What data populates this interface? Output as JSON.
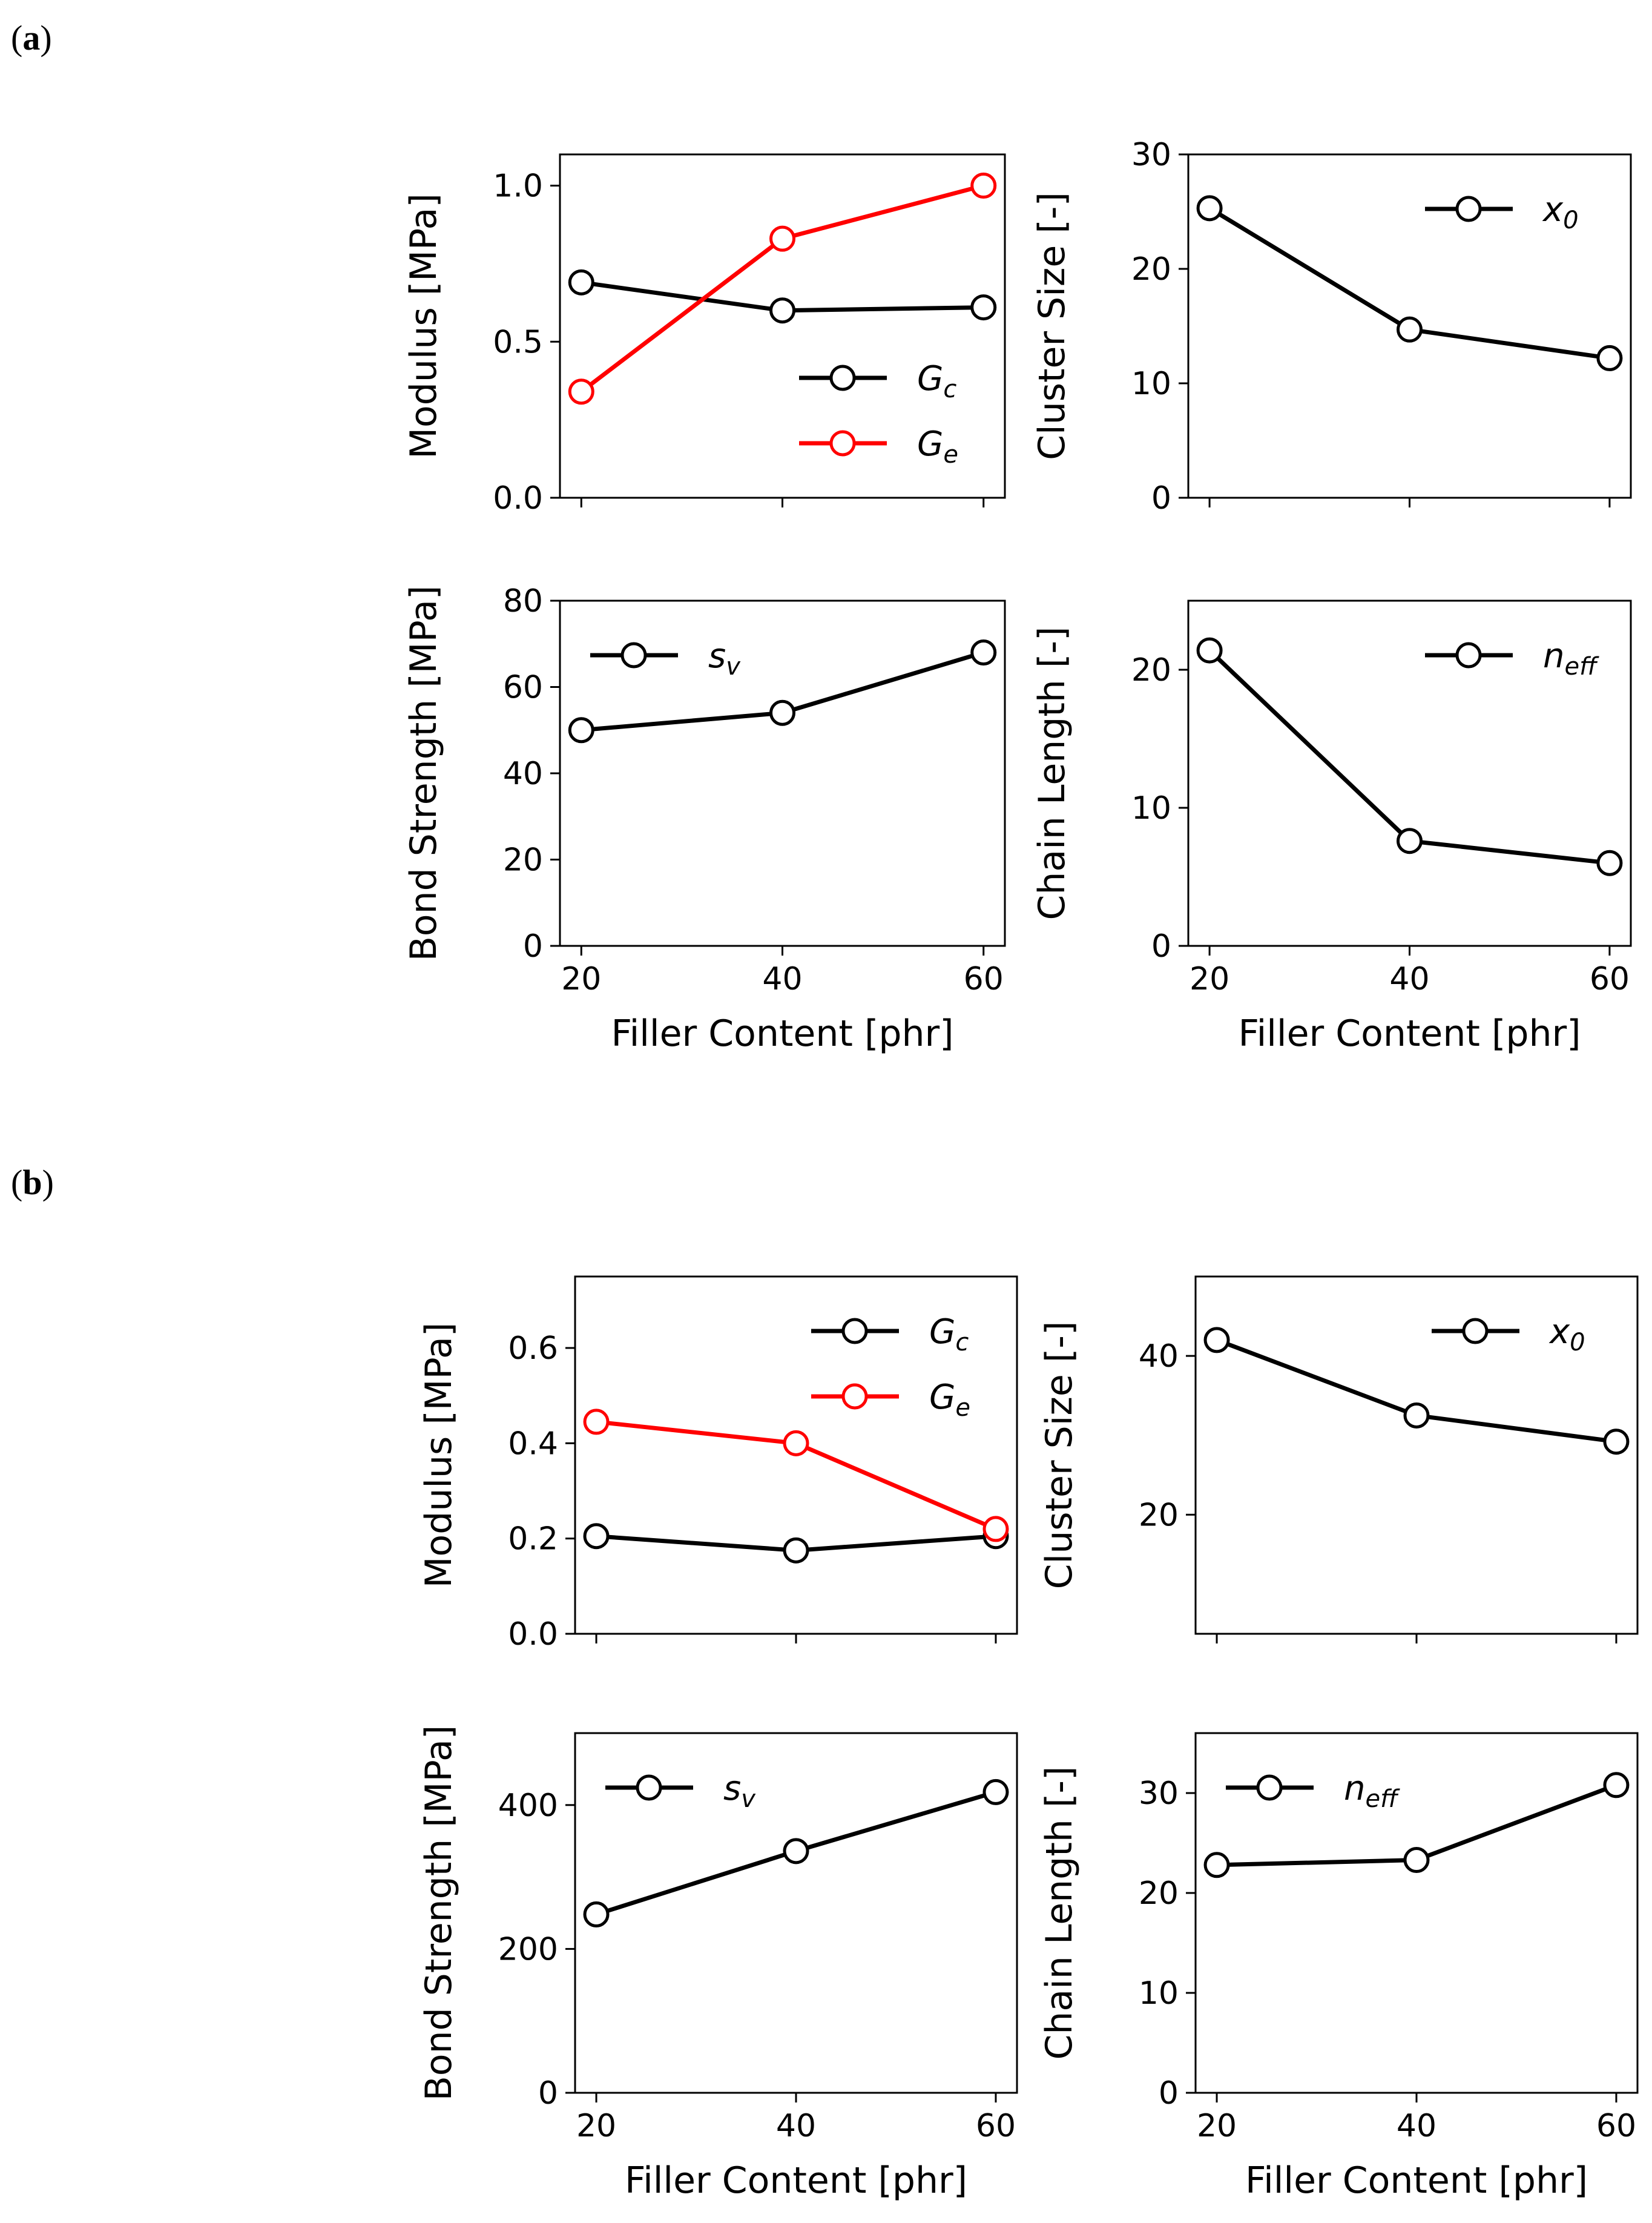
{
  "panels": [
    {
      "label": "(a)",
      "label_letter": "a"
    },
    {
      "label": "(b)",
      "label_letter": "b"
    }
  ],
  "colors": {
    "black": "#000000",
    "red": "#ff0000"
  },
  "chart_data": [
    {
      "panel": "a",
      "type": "line",
      "position": "top-left",
      "title": "",
      "xlabel": "",
      "ylabel": "Modulus [MPa]",
      "x": [
        20,
        40,
        60
      ],
      "xticks": [],
      "xtick_labels": [],
      "ylim": [
        0,
        1.1
      ],
      "yticks": [
        0.0,
        0.5,
        1.0
      ],
      "ytick_labels": [
        "0.0",
        "0.5",
        "1.0"
      ],
      "legend_loc": "lower-right",
      "series": [
        {
          "name": "Gc",
          "base": "G",
          "sub": "c",
          "color": "#000000",
          "values": [
            0.69,
            0.6,
            0.61
          ]
        },
        {
          "name": "Ge",
          "base": "G",
          "sub": "e",
          "color": "#ff0000",
          "values": [
            0.34,
            0.83,
            1.0
          ]
        }
      ]
    },
    {
      "panel": "a",
      "type": "line",
      "position": "top-right",
      "title": "",
      "xlabel": "",
      "ylabel": "Cluster Size [-]",
      "x": [
        20,
        40,
        60
      ],
      "xticks": [],
      "xtick_labels": [],
      "ylim": [
        0,
        30
      ],
      "yticks": [
        0,
        10,
        20,
        30
      ],
      "ytick_labels": [
        "0",
        "10",
        "20",
        "30"
      ],
      "legend_loc": "top-right",
      "series": [
        {
          "name": "x0",
          "base": "x",
          "sub": "0",
          "color": "#000000",
          "values": [
            25.3,
            14.7,
            12.2
          ]
        }
      ]
    },
    {
      "panel": "a",
      "type": "line",
      "position": "bottom-left",
      "title": "",
      "xlabel": "Filler Content [phr]",
      "ylabel": "Bond Strength [MPa]",
      "x": [
        20,
        40,
        60
      ],
      "xticks": [
        20,
        40,
        60
      ],
      "xtick_labels": [
        "20",
        "40",
        "60"
      ],
      "ylim": [
        0,
        80
      ],
      "yticks": [
        0,
        20,
        40,
        60,
        80
      ],
      "ytick_labels": [
        "0",
        "20",
        "40",
        "60",
        "80"
      ],
      "legend_loc": "top-left",
      "series": [
        {
          "name": "sv",
          "base": "s",
          "sub": "v",
          "color": "#000000",
          "values": [
            50,
            54,
            68
          ]
        }
      ]
    },
    {
      "panel": "a",
      "type": "line",
      "position": "bottom-right",
      "title": "",
      "xlabel": "Filler Content [phr]",
      "ylabel": "Chain Length [-]",
      "x": [
        20,
        40,
        60
      ],
      "xticks": [
        20,
        40,
        60
      ],
      "xtick_labels": [
        "20",
        "40",
        "60"
      ],
      "ylim": [
        0,
        25
      ],
      "yticks": [
        0,
        10,
        20
      ],
      "ytick_labels": [
        "0",
        "10",
        "20"
      ],
      "legend_loc": "top-right",
      "series": [
        {
          "name": "neff",
          "base": "n",
          "sub": "eff",
          "color": "#000000",
          "values": [
            21.4,
            7.6,
            6.0
          ]
        }
      ]
    },
    {
      "panel": "b",
      "type": "line",
      "position": "top-left",
      "title": "",
      "xlabel": "",
      "ylabel": "Modulus [MPa]",
      "x": [
        20,
        40,
        60
      ],
      "xticks": [],
      "xtick_labels": [],
      "ylim": [
        0,
        0.75
      ],
      "yticks": [
        0.0,
        0.2,
        0.4,
        0.6
      ],
      "ytick_labels": [
        "0.0",
        "0.2",
        "0.4",
        "0.6"
      ],
      "legend_loc": "top-right",
      "series": [
        {
          "name": "Gc",
          "base": "G",
          "sub": "c",
          "color": "#000000",
          "values": [
            0.205,
            0.175,
            0.205
          ]
        },
        {
          "name": "Ge",
          "base": "G",
          "sub": "e",
          "color": "#ff0000",
          "values": [
            0.445,
            0.4,
            0.22
          ]
        }
      ]
    },
    {
      "panel": "b",
      "type": "line",
      "position": "top-right",
      "title": "",
      "xlabel": "",
      "ylabel": "Cluster Size [-]",
      "x": [
        20,
        40,
        60
      ],
      "xticks": [],
      "xtick_labels": [],
      "ylim": [
        5,
        50
      ],
      "yticks": [
        20,
        40
      ],
      "ytick_labels": [
        "20",
        "40"
      ],
      "legend_loc": "top-right",
      "series": [
        {
          "name": "x0",
          "base": "x",
          "sub": "0",
          "color": "#000000",
          "values": [
            42.0,
            32.5,
            29.2
          ]
        }
      ]
    },
    {
      "panel": "b",
      "type": "line",
      "position": "bottom-left",
      "title": "",
      "xlabel": "Filler Content [phr]",
      "ylabel": "Bond Strength [MPa]",
      "x": [
        20,
        40,
        60
      ],
      "xticks": [
        20,
        40,
        60
      ],
      "xtick_labels": [
        "20",
        "40",
        "60"
      ],
      "ylim": [
        0,
        500
      ],
      "yticks": [
        0,
        200,
        400
      ],
      "ytick_labels": [
        "0",
        "200",
        "400"
      ],
      "legend_loc": "top-left",
      "series": [
        {
          "name": "sv",
          "base": "s",
          "sub": "v",
          "color": "#000000",
          "values": [
            248,
            336,
            418
          ]
        }
      ]
    },
    {
      "panel": "b",
      "type": "line",
      "position": "bottom-right",
      "title": "",
      "xlabel": "Filler Content [phr]",
      "ylabel": "Chain Length [-]",
      "x": [
        20,
        40,
        60
      ],
      "xticks": [
        20,
        40,
        60
      ],
      "xtick_labels": [
        "20",
        "40",
        "60"
      ],
      "ylim": [
        0,
        36
      ],
      "yticks": [
        0,
        10,
        20,
        30
      ],
      "ytick_labels": [
        "0",
        "10",
        "20",
        "30"
      ],
      "legend_loc": "top-left",
      "series": [
        {
          "name": "neff",
          "base": "n",
          "sub": "eff",
          "color": "#000000",
          "values": [
            22.8,
            23.3,
            30.8
          ]
        }
      ]
    }
  ]
}
